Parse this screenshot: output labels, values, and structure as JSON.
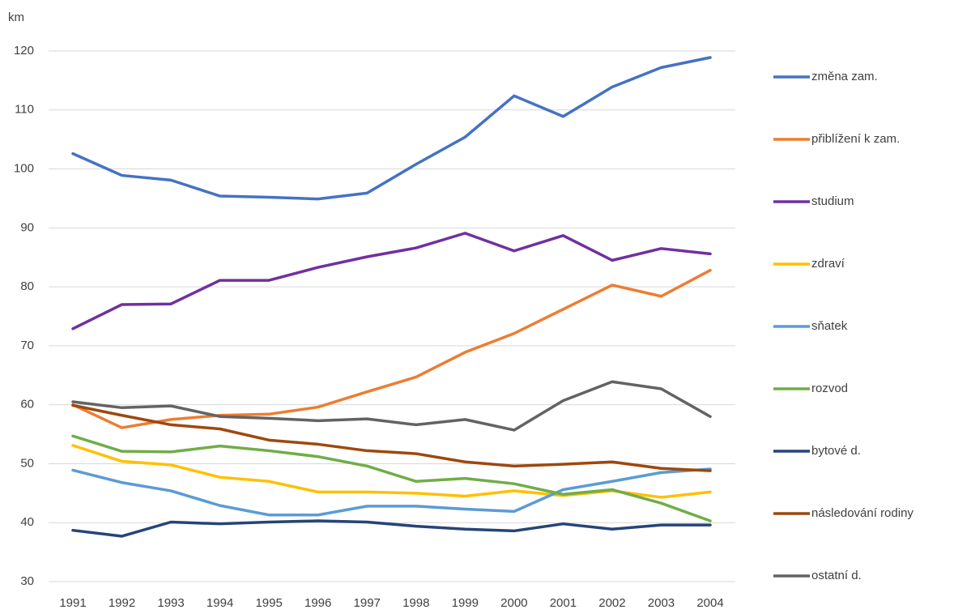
{
  "chart_data": {
    "type": "line",
    "y_label": "km",
    "categories": [
      "1991",
      "1992",
      "1993",
      "1994",
      "1995",
      "1996",
      "1997",
      "1998",
      "1999",
      "2000",
      "2001",
      "2002",
      "2003",
      "2004"
    ],
    "ylim": [
      30,
      120
    ],
    "yticks": [
      30,
      40,
      50,
      60,
      70,
      80,
      90,
      100,
      110,
      120
    ],
    "grid": true,
    "legend": "right",
    "series": [
      {
        "name": "změna zam.",
        "color": "#4472c4",
        "values": [
          102.6,
          98.9,
          98.1,
          95.4,
          95.2,
          94.9,
          95.9,
          100.8,
          105.4,
          112.4,
          108.9,
          113.9,
          117.2,
          118.9
        ]
      },
      {
        "name": "přiblížení k zam.",
        "color": "#ed7d31",
        "values": [
          60.0,
          56.1,
          57.5,
          58.2,
          58.4,
          59.6,
          62.2,
          64.7,
          68.9,
          72.1,
          76.2,
          80.3,
          78.4,
          82.8
        ]
      },
      {
        "name": "studium",
        "color": "#7030a0",
        "values": [
          72.9,
          77.0,
          77.1,
          81.1,
          81.1,
          83.3,
          85.1,
          86.6,
          89.1,
          86.1,
          88.7,
          84.5,
          86.5,
          85.6
        ]
      },
      {
        "name": "zdraví",
        "color": "#ffc000",
        "values": [
          53.1,
          50.4,
          49.8,
          47.7,
          47.0,
          45.2,
          45.2,
          45.0,
          44.5,
          45.4,
          44.6,
          45.4,
          44.3,
          45.2
        ]
      },
      {
        "name": "sňatek",
        "color": "#5b9bd5",
        "values": [
          48.9,
          46.8,
          45.4,
          42.9,
          41.3,
          41.3,
          42.8,
          42.8,
          42.3,
          41.9,
          45.6,
          47.0,
          48.5,
          49.1
        ]
      },
      {
        "name": "rozvod",
        "color": "#70ad47",
        "values": [
          54.7,
          52.1,
          52.0,
          53.0,
          52.2,
          51.2,
          49.6,
          47.0,
          47.5,
          46.6,
          44.8,
          45.6,
          43.3,
          40.3
        ]
      },
      {
        "name": "bytové d.",
        "color": "#264478",
        "values": [
          38.7,
          37.7,
          40.1,
          39.8,
          40.1,
          40.3,
          40.1,
          39.4,
          38.9,
          38.6,
          39.8,
          38.9,
          39.6,
          39.6
        ]
      },
      {
        "name": "následování rodiny",
        "color": "#9e480e",
        "values": [
          59.9,
          58.2,
          56.6,
          55.9,
          54.0,
          53.3,
          52.2,
          51.7,
          50.3,
          49.6,
          49.9,
          50.3,
          49.2,
          48.8
        ]
      },
      {
        "name": "ostatní d.",
        "color": "#636363",
        "values": [
          60.5,
          59.5,
          59.8,
          58.0,
          57.7,
          57.3,
          57.6,
          56.6,
          57.5,
          55.7,
          60.7,
          63.9,
          62.7,
          58.0
        ]
      }
    ]
  }
}
